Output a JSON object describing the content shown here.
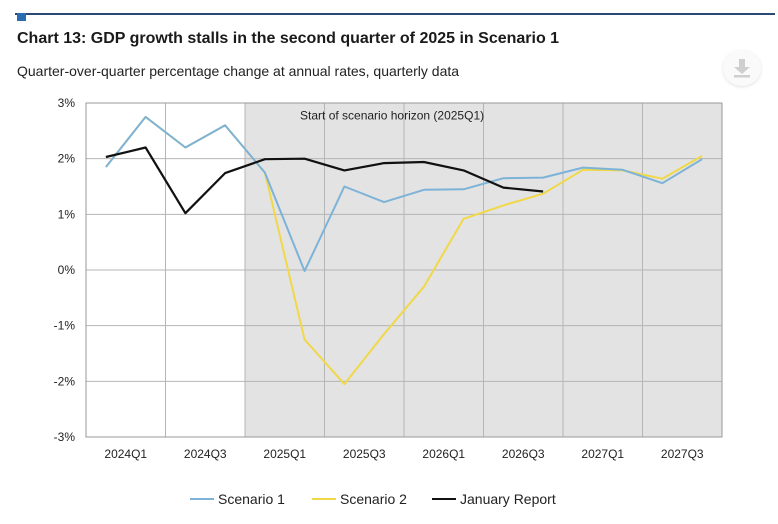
{
  "title": "Chart 13: GDP growth stalls in the second quarter of 2025 in Scenario 1",
  "subtitle": "Quarter-over-quarter percentage change at annual rates, quarterly data",
  "download_icon": "download-icon",
  "colors": {
    "header_rule": "#2b4a73",
    "shaded_region": "#e3e3e3",
    "grid": "#b5b5b5"
  },
  "chart_data": {
    "type": "line",
    "x": [
      "2024Q1",
      "2024Q2",
      "2024Q3",
      "2024Q4",
      "2025Q1",
      "2025Q2",
      "2025Q3",
      "2025Q4",
      "2026Q1",
      "2026Q2",
      "2026Q3",
      "2026Q4",
      "2027Q1",
      "2027Q2",
      "2027Q3",
      "2027Q4"
    ],
    "x_tick_labels": [
      "2024Q1",
      "2024Q3",
      "2025Q1",
      "2025Q3",
      "2026Q1",
      "2026Q3",
      "2027Q1",
      "2027Q3"
    ],
    "y_tick_labels": [
      "3%",
      "2%",
      "1%",
      "0%",
      "-1%",
      "-2%",
      "-3%"
    ],
    "ylim": [
      -3,
      3
    ],
    "grid": true,
    "legend_position": "bottom",
    "shaded_from": "2025Q1",
    "annotation": "Start of scenario horizon (2025Q1)",
    "series": [
      {
        "name": "Scenario 1",
        "color": "#7db3d8",
        "values": [
          1.85,
          2.75,
          2.2,
          2.6,
          1.75,
          -0.02,
          1.5,
          1.22,
          1.44,
          1.45,
          1.65,
          1.66,
          1.84,
          1.8,
          1.56,
          1.99
        ]
      },
      {
        "name": "Scenario 2",
        "color": "#f0d848",
        "values": [
          1.85,
          2.75,
          2.2,
          2.6,
          1.75,
          -1.25,
          -2.05,
          -1.15,
          -0.3,
          0.92,
          1.16,
          1.37,
          1.8,
          1.79,
          1.64,
          2.05
        ]
      },
      {
        "name": "January Report",
        "color": "#111111",
        "values": [
          2.03,
          2.2,
          1.02,
          1.74,
          1.99,
          2.0,
          1.79,
          1.92,
          1.94,
          1.79,
          1.48,
          1.41,
          null,
          null,
          null,
          null
        ]
      }
    ]
  }
}
